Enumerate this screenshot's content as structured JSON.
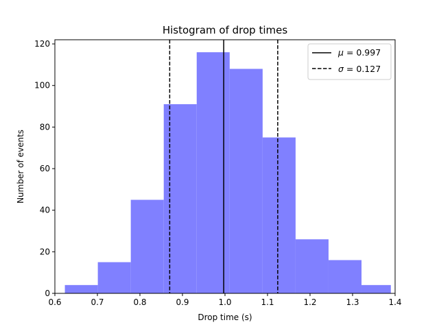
{
  "chart_data": {
    "type": "bar",
    "title": "Histogram of drop times",
    "xlabel": "Drop time (s)",
    "ylabel": "Number of events",
    "xlim": [
      0.6,
      1.4
    ],
    "ylim": [
      0,
      122
    ],
    "xticks": [
      "0.6",
      "0.7",
      "0.8",
      "0.9",
      "1.0",
      "1.1",
      "1.2",
      "1.3",
      "1.4"
    ],
    "yticks": [
      "0",
      "20",
      "40",
      "60",
      "80",
      "100",
      "120"
    ],
    "bin_edges": [
      0.6235,
      0.701,
      0.7785,
      0.856,
      0.9335,
      1.011,
      1.0885,
      1.166,
      1.2435,
      1.321,
      1.39
    ],
    "counts": [
      4,
      15,
      45,
      91,
      116,
      108,
      75,
      26,
      16,
      4
    ],
    "bar_color": "#8080ff",
    "mean": 0.997,
    "sigma": 0.127,
    "mean_line_x": 0.997,
    "sigma_lines_x": [
      0.87,
      1.124
    ],
    "legend": {
      "position": "upper right",
      "entries": [
        {
          "symbol": "μ",
          "value": "= 0.997",
          "style": "solid"
        },
        {
          "symbol": "σ",
          "value": "= 0.127",
          "style": "dashed"
        }
      ]
    },
    "grid": false
  }
}
